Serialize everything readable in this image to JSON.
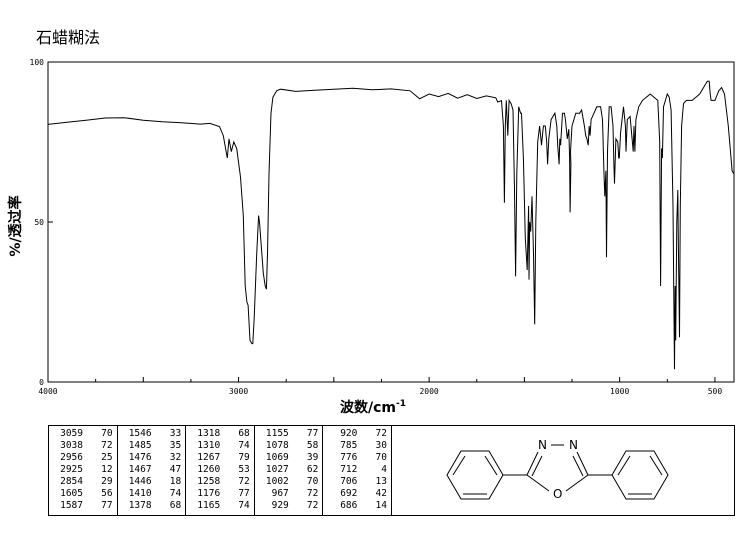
{
  "method": "石蜡糊法",
  "chart_data": {
    "type": "line",
    "xlabel": "波数/cm",
    "xlabel_sup": "-1",
    "ylabel": "透过率",
    "ylabel_unit": "%/",
    "xlim": [
      4000,
      400
    ],
    "ylim": [
      0,
      100
    ],
    "x_ticks": [
      4000,
      3000,
      2000,
      1000,
      500
    ],
    "y_ticks": [
      0,
      50,
      100
    ],
    "series": [
      {
        "points": [
          [
            4000,
            80.5
          ],
          [
            3900,
            81.2
          ],
          [
            3800,
            81.8
          ],
          [
            3700,
            82.5
          ],
          [
            3600,
            82.6
          ],
          [
            3500,
            81.8
          ],
          [
            3400,
            81.3
          ],
          [
            3300,
            81.0
          ],
          [
            3200,
            80.6
          ],
          [
            3150,
            80.8
          ],
          [
            3100,
            79.8
          ],
          [
            3080,
            77
          ],
          [
            3059,
            70
          ],
          [
            3050,
            76
          ],
          [
            3038,
            72
          ],
          [
            3025,
            75
          ],
          [
            3010,
            73
          ],
          [
            2990,
            64
          ],
          [
            2975,
            52
          ],
          [
            2965,
            30
          ],
          [
            2956,
            25
          ],
          [
            2950,
            24
          ],
          [
            2940,
            13
          ],
          [
            2930,
            12
          ],
          [
            2925,
            12
          ],
          [
            2918,
            20
          ],
          [
            2905,
            40
          ],
          [
            2895,
            52
          ],
          [
            2890,
            50
          ],
          [
            2880,
            42
          ],
          [
            2870,
            34
          ],
          [
            2860,
            30
          ],
          [
            2854,
            29
          ],
          [
            2848,
            40
          ],
          [
            2840,
            65
          ],
          [
            2830,
            84
          ],
          [
            2820,
            89
          ],
          [
            2800,
            91
          ],
          [
            2780,
            91.5
          ],
          [
            2700,
            90.8
          ],
          [
            2600,
            91.2
          ],
          [
            2500,
            91.5
          ],
          [
            2400,
            91.8
          ],
          [
            2300,
            91.3
          ],
          [
            2200,
            91.6
          ],
          [
            2100,
            91.0
          ],
          [
            2050,
            88.5
          ],
          [
            2000,
            90.0
          ],
          [
            1950,
            89.2
          ],
          [
            1900,
            90.2
          ],
          [
            1850,
            88.7
          ],
          [
            1800,
            89.8
          ],
          [
            1750,
            88.6
          ],
          [
            1700,
            89.4
          ],
          [
            1650,
            88.8
          ],
          [
            1640,
            87.5
          ],
          [
            1620,
            87.9
          ],
          [
            1610,
            80
          ],
          [
            1605,
            56
          ],
          [
            1600,
            80
          ],
          [
            1595,
            88
          ],
          [
            1587,
            77
          ],
          [
            1580,
            88
          ],
          [
            1570,
            87
          ],
          [
            1560,
            85
          ],
          [
            1552,
            60
          ],
          [
            1546,
            33
          ],
          [
            1540,
            65
          ],
          [
            1530,
            86
          ],
          [
            1520,
            84
          ],
          [
            1515,
            84
          ],
          [
            1505,
            70
          ],
          [
            1495,
            45
          ],
          [
            1485,
            35
          ],
          [
            1478,
            55
          ],
          [
            1476,
            32
          ],
          [
            1472,
            50
          ],
          [
            1467,
            47
          ],
          [
            1460,
            58
          ],
          [
            1452,
            40
          ],
          [
            1446,
            18
          ],
          [
            1440,
            50
          ],
          [
            1430,
            75
          ],
          [
            1420,
            80
          ],
          [
            1415,
            77
          ],
          [
            1410,
            74
          ],
          [
            1400,
            80
          ],
          [
            1390,
            80
          ],
          [
            1383,
            75
          ],
          [
            1378,
            68
          ],
          [
            1372,
            76
          ],
          [
            1360,
            82
          ],
          [
            1340,
            84
          ],
          [
            1330,
            80
          ],
          [
            1325,
            74
          ],
          [
            1318,
            68
          ],
          [
            1314,
            76
          ],
          [
            1310,
            74
          ],
          [
            1300,
            84
          ],
          [
            1290,
            84
          ],
          [
            1285,
            82
          ],
          [
            1275,
            76
          ],
          [
            1267,
            79
          ],
          [
            1263,
            70
          ],
          [
            1260,
            53
          ],
          [
            1256,
            68
          ],
          [
            1258,
            72
          ],
          [
            1250,
            80
          ],
          [
            1230,
            84
          ],
          [
            1210,
            84
          ],
          [
            1200,
            85
          ],
          [
            1185,
            80
          ],
          [
            1178,
            77
          ],
          [
            1172,
            76
          ],
          [
            1165,
            74
          ],
          [
            1160,
            80
          ],
          [
            1155,
            77
          ],
          [
            1150,
            82
          ],
          [
            1120,
            86
          ],
          [
            1100,
            86
          ],
          [
            1090,
            82
          ],
          [
            1082,
            65
          ],
          [
            1078,
            58
          ],
          [
            1072,
            66
          ],
          [
            1069,
            39
          ],
          [
            1064,
            72
          ],
          [
            1055,
            86
          ],
          [
            1045,
            86
          ],
          [
            1035,
            80
          ],
          [
            1030,
            68
          ],
          [
            1027,
            62
          ],
          [
            1020,
            76
          ],
          [
            1010,
            75
          ],
          [
            1005,
            70
          ],
          [
            1002,
            70
          ],
          [
            995,
            78
          ],
          [
            980,
            86
          ],
          [
            970,
            80
          ],
          [
            967,
            72
          ],
          [
            960,
            82
          ],
          [
            945,
            83
          ],
          [
            935,
            76
          ],
          [
            929,
            72
          ],
          [
            925,
            80
          ],
          [
            920,
            72
          ],
          [
            915,
            82
          ],
          [
            900,
            86
          ],
          [
            880,
            88
          ],
          [
            860,
            89
          ],
          [
            840,
            90
          ],
          [
            820,
            89
          ],
          [
            800,
            88
          ],
          [
            790,
            75
          ],
          [
            785,
            30
          ],
          [
            780,
            73
          ],
          [
            776,
            70
          ],
          [
            770,
            86
          ],
          [
            760,
            88
          ],
          [
            750,
            90
          ],
          [
            740,
            89
          ],
          [
            730,
            85
          ],
          [
            720,
            55
          ],
          [
            715,
            20
          ],
          [
            712,
            4
          ],
          [
            709,
            30
          ],
          [
            706,
            13
          ],
          [
            700,
            50
          ],
          [
            695,
            60
          ],
          [
            692,
            42
          ],
          [
            689,
            30
          ],
          [
            686,
            14
          ],
          [
            682,
            55
          ],
          [
            675,
            80
          ],
          [
            665,
            87
          ],
          [
            650,
            88
          ],
          [
            620,
            88
          ],
          [
            600,
            89
          ],
          [
            580,
            90
          ],
          [
            560,
            92
          ],
          [
            540,
            94
          ],
          [
            530,
            94
          ],
          [
            525,
            90
          ],
          [
            520,
            88
          ],
          [
            500,
            88
          ],
          [
            480,
            91
          ],
          [
            465,
            92
          ],
          [
            450,
            90
          ],
          [
            430,
            80
          ],
          [
            410,
            66
          ],
          [
            400,
            65
          ]
        ]
      }
    ]
  },
  "peak_table": {
    "columns": [
      [
        [
          "3059",
          "70"
        ],
        [
          "3038",
          "72"
        ],
        [
          "2956",
          "25"
        ],
        [
          "2925",
          "12"
        ],
        [
          "2854",
          "29"
        ],
        [
          "1605",
          "56"
        ],
        [
          "1587",
          "77"
        ]
      ],
      [
        [
          "1546",
          "33"
        ],
        [
          "1485",
          "35"
        ],
        [
          "1476",
          "32"
        ],
        [
          "1467",
          "47"
        ],
        [
          "1446",
          "18"
        ],
        [
          "1410",
          "74"
        ],
        [
          "1378",
          "68"
        ]
      ],
      [
        [
          "1318",
          "68"
        ],
        [
          "1310",
          "74"
        ],
        [
          "1267",
          "79"
        ],
        [
          "1260",
          "53"
        ],
        [
          "1258",
          "72"
        ],
        [
          "1176",
          "77"
        ],
        [
          "1165",
          "74"
        ]
      ],
      [
        [
          "1155",
          "77"
        ],
        [
          "1078",
          "58"
        ],
        [
          "1069",
          "39"
        ],
        [
          "1027",
          "62"
        ],
        [
          "1002",
          "70"
        ],
        [
          "967",
          "72"
        ],
        [
          "929",
          "72"
        ]
      ],
      [
        [
          "920",
          "72"
        ],
        [
          "785",
          "30"
        ],
        [
          "776",
          "70"
        ],
        [
          "712",
          "4"
        ],
        [
          "706",
          "13"
        ],
        [
          "692",
          "42"
        ],
        [
          "686",
          "14"
        ]
      ]
    ]
  },
  "structure": {
    "atom_n1": "N",
    "atom_n2": "N",
    "atom_o": "O"
  }
}
